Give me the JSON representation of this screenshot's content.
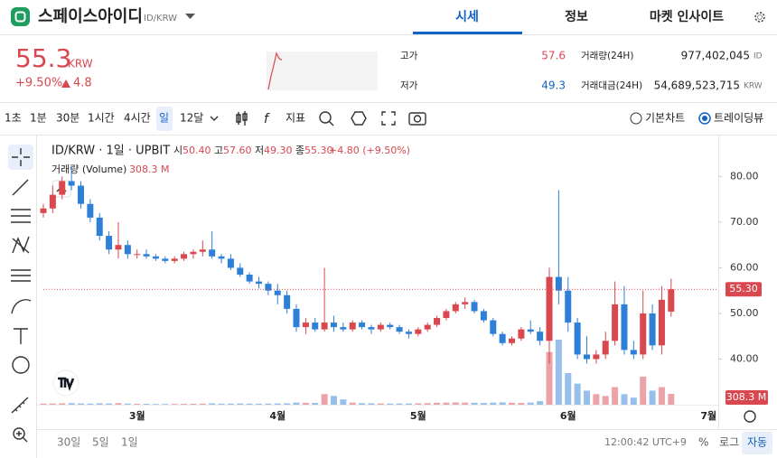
{
  "header": {
    "title": "스페이스아이디",
    "pair": "ID/KRW",
    "tabs": [
      "시세",
      "정보",
      "마켓 인사이트"
    ]
  },
  "ticker": {
    "price": "55.3",
    "currency": "KRW",
    "change_rate": "+9.50%",
    "change": "4.8",
    "sparkline": [
      45.2,
      49.8,
      53.5,
      57.6,
      55.8,
      55.3
    ],
    "sparkline_color": "#d9474f",
    "stats": [
      {
        "label": "고가",
        "value": "57.6",
        "color": "#d9474f"
      },
      {
        "label": "저가",
        "value": "49.3",
        "color": "#1261c4"
      },
      {
        "label": "거래량(24H)",
        "value": "977,402,045",
        "unit": "ID"
      },
      {
        "label": "거래대금(24H)",
        "value": "54,689,523,715",
        "unit": "KRW"
      }
    ]
  },
  "toolbar": {
    "intervals": [
      "1초",
      "1분",
      "30분",
      "1시간",
      "4시간",
      "일",
      "12달"
    ],
    "active": 5,
    "indicator": "지표",
    "views": [
      "기본차트",
      "트레이딩뷰"
    ],
    "active_view": 1
  },
  "footer": {
    "ranges": [
      "30일",
      "5일",
      "1일"
    ],
    "clock": "12:00:42 UTC+9",
    "options": [
      "%",
      "로그",
      "자동"
    ],
    "active_option": 2
  },
  "chart_data": {
    "type": "candlestick",
    "title": "ID/KRW · 1일 · UPBIT",
    "ohlc_labels": [
      {
        "key": "시",
        "value": "50.40"
      },
      {
        "key": "고",
        "value": "57.60"
      },
      {
        "key": "저",
        "value": "49.30"
      },
      {
        "key": "종",
        "value": "55.30"
      }
    ],
    "change_label": "+4.80 (+9.50%)",
    "volume_title": "거래량 (Volume)",
    "volume_label": "308.3 M",
    "last_price_label": "55.30",
    "up_color": "#d9474f",
    "down_color": "#2e7fd8",
    "ylim": [
      30,
      88
    ],
    "yticks": [
      {
        "value": 40,
        "label": "40.00"
      },
      {
        "value": 50,
        "label": "50.00"
      },
      {
        "value": 60,
        "label": "60.00"
      },
      {
        "value": 70,
        "label": "70.00"
      },
      {
        "value": 80,
        "label": "80.00"
      }
    ],
    "grid": false,
    "categories": [
      null,
      null,
      null,
      null,
      null,
      null,
      null,
      null,
      null,
      null,
      "3월",
      null,
      null,
      null,
      null,
      null,
      null,
      null,
      null,
      null,
      null,
      null,
      null,
      null,
      null,
      "4월",
      null,
      null,
      null,
      null,
      null,
      null,
      null,
      null,
      null,
      null,
      null,
      null,
      null,
      null,
      "5월",
      null,
      null,
      null,
      null,
      null,
      null,
      null,
      null,
      null,
      null,
      null,
      null,
      null,
      null,
      null,
      "6월",
      null,
      null,
      null,
      null,
      null,
      null,
      null,
      null,
      null,
      null,
      null,
      null,
      null,
      null,
      "7월"
    ],
    "open": [
      72,
      73,
      76,
      79,
      78,
      74,
      71,
      67,
      64,
      65,
      63,
      63,
      62.5,
      62,
      61.5,
      62,
      63,
      63.5,
      64,
      62.5,
      62,
      60,
      58.5,
      57,
      56.5,
      55,
      54,
      51,
      47,
      48,
      46.5,
      48,
      47,
      46.5,
      48,
      47,
      46.5,
      47.5,
      47,
      46,
      45.5,
      46.5,
      47.5,
      49,
      50.5,
      52,
      52.5,
      50.5,
      48.5,
      45.5,
      43.5,
      44.5,
      46.5,
      46,
      44,
      58,
      55,
      48,
      41,
      40,
      41,
      44,
      52,
      42,
      41,
      50,
      43,
      50.4,
      null,
      null,
      null,
      null
    ],
    "high": [
      74,
      78,
      80,
      82,
      79,
      75,
      72,
      68,
      70,
      66,
      64,
      64,
      63,
      62.5,
      62.5,
      63.5,
      64,
      66,
      68,
      63,
      63,
      61,
      59,
      58,
      57,
      56.5,
      55,
      52,
      49,
      49,
      60,
      49.5,
      48,
      48.5,
      48.5,
      47.5,
      48,
      48,
      47.5,
      46.5,
      47,
      48,
      49.5,
      51,
      52.5,
      53.5,
      53,
      51,
      49,
      46,
      45,
      47,
      48.5,
      47,
      60,
      77,
      58,
      49,
      45,
      42,
      46,
      57,
      56,
      44,
      55,
      52,
      56,
      57.6,
      null,
      null,
      null,
      null
    ],
    "low": [
      71,
      72,
      75,
      77,
      73,
      70,
      66,
      63,
      62,
      62,
      62,
      62,
      61.5,
      61,
      61,
      61.5,
      62,
      62.5,
      62,
      61,
      59.5,
      58,
      56.5,
      55.5,
      54,
      52,
      50,
      46,
      45.5,
      46,
      46,
      46,
      46,
      46,
      46.5,
      45.5,
      46,
      46.5,
      45.5,
      44.5,
      45,
      46,
      47,
      48.5,
      50,
      51,
      50,
      48,
      45,
      43,
      43,
      44,
      45.5,
      43,
      39,
      52,
      46,
      40,
      39,
      39,
      40,
      43,
      41,
      40,
      40,
      42,
      41,
      49.3,
      null,
      null,
      null,
      null
    ],
    "close": [
      73,
      76,
      79,
      78,
      74,
      71,
      67,
      64,
      65,
      63,
      63,
      62.5,
      62,
      61.5,
      62,
      63,
      63.5,
      64,
      62.5,
      62,
      60,
      58.5,
      57,
      56.5,
      55,
      54,
      51,
      47,
      48,
      46.5,
      48,
      47,
      46.5,
      48,
      47,
      46.5,
      47.5,
      47,
      46,
      45.5,
      46.5,
      47.5,
      49,
      50.5,
      52,
      52.5,
      50.5,
      48.5,
      45.5,
      43.5,
      44.5,
      46.5,
      46,
      44,
      58,
      55,
      48,
      41,
      40,
      41,
      44,
      52,
      42,
      41,
      50,
      43,
      53,
      55.3,
      null,
      null,
      null,
      null
    ],
    "volume": [
      30,
      35,
      40,
      45,
      35,
      30,
      40,
      35,
      45,
      30,
      25,
      25,
      20,
      20,
      22,
      25,
      28,
      30,
      40,
      30,
      30,
      35,
      30,
      28,
      30,
      35,
      40,
      60,
      55,
      50,
      300,
      250,
      150,
      60,
      45,
      40,
      35,
      30,
      35,
      35,
      40,
      45,
      55,
      60,
      65,
      60,
      55,
      50,
      60,
      65,
      55,
      50,
      60,
      100,
      1500,
      1850,
      900,
      600,
      400,
      300,
      250,
      500,
      300,
      200,
      800,
      400,
      500,
      308.3,
      null,
      null,
      null,
      null
    ]
  }
}
